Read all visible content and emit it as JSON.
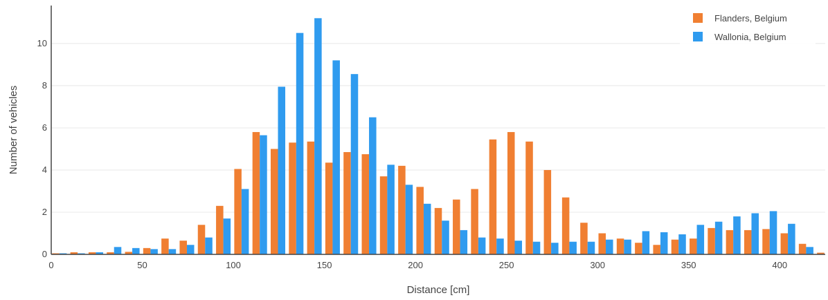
{
  "chart_data": {
    "type": "bar",
    "xlabel": "Distance [cm]",
    "ylabel": "Number of vehicles",
    "xlim": [
      0,
      425
    ],
    "ylim": [
      0,
      11.8
    ],
    "x_ticks": [
      0,
      50,
      100,
      150,
      200,
      250,
      300,
      350,
      400
    ],
    "y_ticks": [
      0,
      2,
      4,
      6,
      8,
      10
    ],
    "grid": true,
    "legend_position": "top-right",
    "x": [
      5,
      15,
      25,
      35,
      45,
      55,
      65,
      75,
      85,
      95,
      105,
      115,
      125,
      135,
      145,
      155,
      165,
      175,
      185,
      195,
      205,
      215,
      225,
      235,
      245,
      255,
      265,
      275,
      285,
      295,
      305,
      315,
      325,
      335,
      345,
      355,
      365,
      375,
      385,
      395,
      405,
      415,
      425
    ],
    "series": [
      {
        "name": "Flanders, Belgium",
        "color": "#f07f32",
        "values": [
          0.05,
          0.1,
          0.1,
          0.1,
          0.12,
          0.3,
          0.75,
          0.65,
          1.4,
          2.3,
          4.05,
          5.8,
          5.0,
          5.3,
          5.35,
          4.35,
          4.85,
          4.75,
          3.7,
          4.2,
          3.2,
          2.2,
          2.6,
          3.1,
          5.45,
          5.8,
          5.35,
          4.0,
          2.7,
          1.5,
          1.0,
          0.75,
          0.55,
          0.45,
          0.7,
          0.75,
          1.25,
          1.15,
          1.15,
          1.2,
          1.0,
          0.5,
          0.08
        ]
      },
      {
        "name": "Wallonia, Belgium",
        "color": "#2f9bef",
        "values": [
          0.05,
          0.05,
          0.1,
          0.35,
          0.3,
          0.25,
          0.25,
          0.45,
          0.8,
          1.7,
          3.1,
          5.65,
          7.95,
          10.5,
          11.2,
          9.2,
          8.55,
          6.5,
          4.25,
          3.3,
          2.4,
          1.6,
          1.15,
          0.8,
          0.75,
          0.65,
          0.6,
          0.55,
          0.6,
          0.6,
          0.7,
          0.7,
          1.1,
          1.05,
          0.95,
          1.4,
          1.55,
          1.8,
          1.95,
          2.05,
          1.45,
          0.35,
          0.0
        ]
      }
    ]
  }
}
